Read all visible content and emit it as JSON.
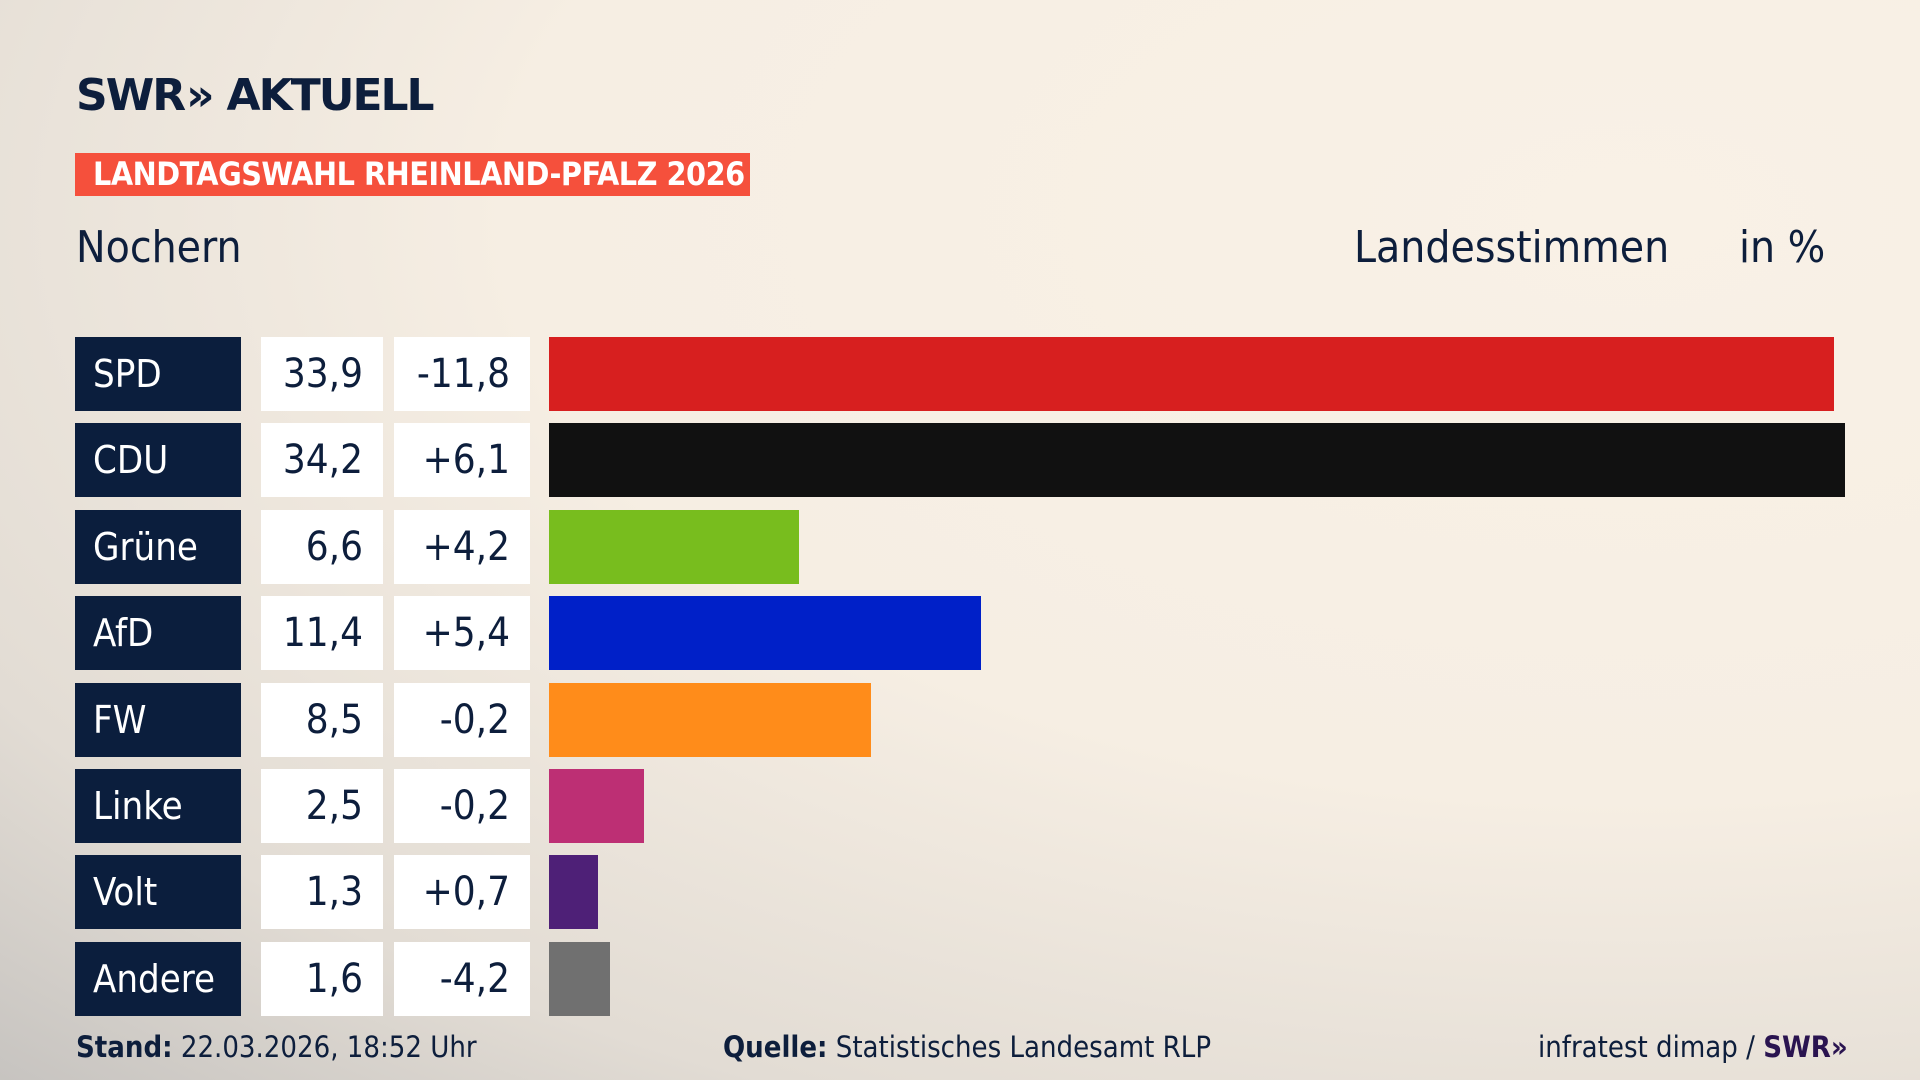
{
  "header": {
    "logo": "SWR» AKTUELL",
    "logo_swr": "SWR",
    "logo_aktuell": "AKTUELL",
    "banner": "LANDTAGSWAHL RHEINLAND-PFALZ 2026",
    "place": "Nochern",
    "vote_type": "Landesstimmen",
    "unit": "in %"
  },
  "chart_data": {
    "type": "bar",
    "orientation": "horizontal",
    "categories": [
      "SPD",
      "CDU",
      "Grüne",
      "AfD",
      "FW",
      "Linke",
      "Volt",
      "Andere"
    ],
    "values": [
      33.9,
      34.2,
      6.6,
      11.4,
      8.5,
      2.5,
      1.3,
      1.6
    ],
    "value_labels": [
      "33,9",
      "34,2",
      "6,6",
      "11,4",
      "8,5",
      "2,5",
      "1,3",
      "1,6"
    ],
    "diff_labels": [
      "-11,8",
      "+6,1",
      "+4,2",
      "+5,4",
      "-0,2",
      "-0,2",
      "+0,7",
      "-4,2"
    ],
    "colors": [
      "#d71f1f",
      "#111111",
      "#78bd1e",
      "#0020c8",
      "#ff8c1a",
      "#bd2f74",
      "#4e2077",
      "#707070"
    ],
    "xlim": [
      0,
      34.2
    ]
  },
  "footer": {
    "stand_label": "Stand:",
    "stand_value": "22.03.2026, 18:52 Uhr",
    "source_label": "Quelle:",
    "source_value": "Statistisches Landesamt RLP",
    "credit": "infratest dimap /",
    "credit_logo": "SWR»"
  }
}
